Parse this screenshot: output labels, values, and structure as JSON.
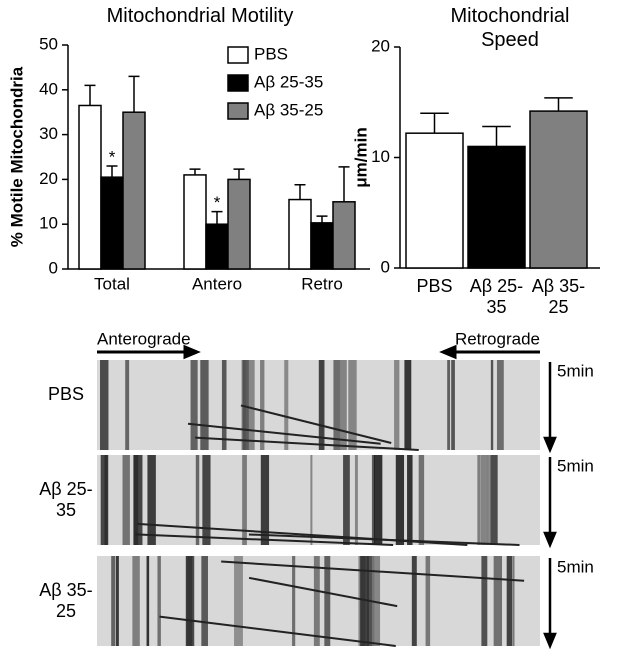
{
  "chart_data": [
    {
      "type": "bar",
      "title": "Mitochondrial Motility",
      "ylabel": "% Motile Mitochondria",
      "categories": [
        "Total",
        "Antero",
        "Retro"
      ],
      "series": [
        {
          "name": "PBS",
          "color": "#ffffff",
          "values": [
            36.5,
            21,
            15.5
          ],
          "errors": [
            4.5,
            1.3,
            3.3
          ]
        },
        {
          "name": "Aβ 25-35",
          "color": "#000000",
          "values": [
            20.5,
            10,
            10.3
          ],
          "errors": [
            2.5,
            2.8,
            1.5
          ]
        },
        {
          "name": "Aβ 35-25",
          "color": "#808080",
          "values": [
            35,
            20,
            15
          ],
          "errors": [
            8,
            2.3,
            7.8
          ]
        }
      ],
      "annotations": [
        {
          "text": "*",
          "category": 0,
          "series": 1
        },
        {
          "text": "*",
          "category": 1,
          "series": 1
        }
      ],
      "ylim": [
        0,
        50
      ],
      "yticks": [
        0,
        10,
        20,
        30,
        40,
        50
      ],
      "legend": "top-right"
    },
    {
      "type": "bar",
      "title": "Mitochondrial Speed",
      "ylabel": "μm/min",
      "categories": [
        "PBS",
        "Aβ 25-35",
        "Aβ 35-25"
      ],
      "values": [
        12.2,
        11,
        14.2
      ],
      "errors": [
        1.8,
        1.8,
        1.2
      ],
      "colors": [
        "#ffffff",
        "#000000",
        "#808080"
      ],
      "ylim": [
        0,
        20
      ],
      "yticks": [
        0,
        10,
        20
      ]
    }
  ],
  "kymograph": {
    "anterograde": "Anterograde",
    "retrograde": "Retrograde",
    "panels": [
      {
        "label": "PBS",
        "time": "5min"
      },
      {
        "label": "Aβ 25-35",
        "time": "5min"
      },
      {
        "label": "Aβ 35-25",
        "time": "5min"
      }
    ]
  }
}
